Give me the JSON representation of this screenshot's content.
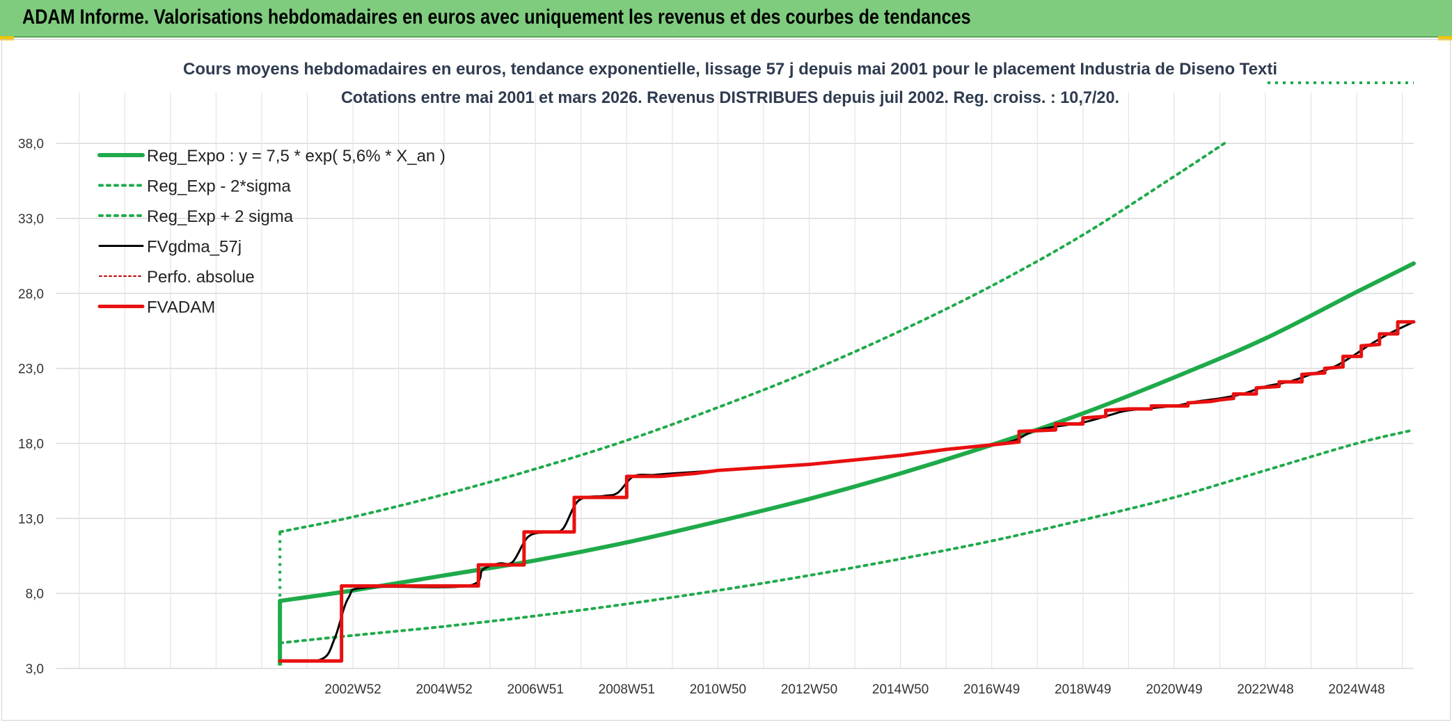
{
  "header": {
    "title": "ADAM Informe. Valorisations hebdomadaires en euros avec uniquement les revenus et des courbes de tendances"
  },
  "chart_data": {
    "type": "line",
    "title_line1": "Cours moyens hebdomadaires en euros, tendance exponentielle, lissage 57 j depuis mai 2001 pour le placement Industria de Diseno Texti",
    "title_line2": "Cotations entre mai 2001 et mars 2026. Revenus DISTRIBUES depuis juil 2002. Reg. croiss. : 10,7/20.",
    "xlabel": "",
    "ylabel": "",
    "ylim": [
      3,
      40
    ],
    "y_ticks": [
      "3,0",
      "8,0",
      "13,0",
      "18,0",
      "23,0",
      "28,0",
      "33,0",
      "38,0"
    ],
    "x_tick_labels": [
      "2002W52",
      "2004W52",
      "2006W51",
      "2008W51",
      "2010W50",
      "2012W50",
      "2014W50",
      "2016W49",
      "2018W49",
      "2020W49",
      "2022W48",
      "2024W48"
    ],
    "x_ticks_year": [
      2003,
      2005,
      2007,
      2009,
      2011,
      2013,
      2015,
      2017,
      2019,
      2021,
      2023,
      2025
    ],
    "x_range_year": [
      1996.5,
      2026.25
    ],
    "data_start_year": 2001.4,
    "grid": true,
    "legend_position": "top-left",
    "series": [
      {
        "name": "Reg_Expo : y = 7,5 * exp( 5,6% *  X_an )",
        "color": "#1faa4a",
        "style": "solid-thick",
        "points": [
          [
            2001.4,
            7.5
          ],
          [
            2003,
            8.2
          ],
          [
            2005,
            9.2
          ],
          [
            2007,
            10.2
          ],
          [
            2009,
            11.4
          ],
          [
            2011,
            12.8
          ],
          [
            2013,
            14.3
          ],
          [
            2015,
            16.0
          ],
          [
            2017,
            17.9
          ],
          [
            2019,
            20.0
          ],
          [
            2021,
            22.4
          ],
          [
            2023,
            25.0
          ],
          [
            2025,
            28.1
          ],
          [
            2026.25,
            30.0
          ]
        ]
      },
      {
        "name": "Reg_Exp - 2*sigma",
        "color": "#1faa4a",
        "style": "dotted",
        "points": [
          [
            2001.4,
            4.7
          ],
          [
            2003,
            5.2
          ],
          [
            2005,
            5.8
          ],
          [
            2007,
            6.5
          ],
          [
            2009,
            7.3
          ],
          [
            2011,
            8.2
          ],
          [
            2013,
            9.2
          ],
          [
            2015,
            10.3
          ],
          [
            2017,
            11.5
          ],
          [
            2019,
            12.9
          ],
          [
            2021,
            14.4
          ],
          [
            2023,
            16.2
          ],
          [
            2025,
            18.0
          ],
          [
            2026.25,
            18.9
          ]
        ]
      },
      {
        "name": "Reg_Exp + 2 sigma",
        "color": "#1faa4a",
        "style": "dotted",
        "points": [
          [
            2001.4,
            12.1
          ],
          [
            2003,
            13.1
          ],
          [
            2005,
            14.6
          ],
          [
            2007,
            16.3
          ],
          [
            2009,
            18.2
          ],
          [
            2011,
            20.4
          ],
          [
            2013,
            22.8
          ],
          [
            2015,
            25.5
          ],
          [
            2017,
            28.5
          ],
          [
            2019,
            31.9
          ],
          [
            2021,
            35.8
          ],
          [
            2022.1,
            38.0
          ]
        ]
      },
      {
        "name": "FVgdma_57j",
        "color": "#000000",
        "style": "solid",
        "points": [
          [
            2001.4,
            3.5
          ],
          [
            2002.3,
            3.6
          ],
          [
            2002.6,
            5.0
          ],
          [
            2002.9,
            7.7
          ],
          [
            2003.3,
            8.4
          ],
          [
            2005.5,
            8.5
          ],
          [
            2005.85,
            9.6
          ],
          [
            2006.2,
            10.0
          ],
          [
            2006.5,
            10.1
          ],
          [
            2006.85,
            11.8
          ],
          [
            2007.3,
            12.1
          ],
          [
            2007.6,
            12.3
          ],
          [
            2007.95,
            14.2
          ],
          [
            2008.5,
            14.5
          ],
          [
            2008.8,
            14.7
          ],
          [
            2009.15,
            15.8
          ],
          [
            2009.6,
            15.9
          ],
          [
            2010,
            16.0
          ],
          [
            2011,
            16.2
          ],
          [
            2012,
            16.4
          ],
          [
            2013,
            16.6
          ],
          [
            2014,
            16.9
          ],
          [
            2015,
            17.2
          ],
          [
            2016,
            17.6
          ],
          [
            2017,
            17.9
          ],
          [
            2017.5,
            18.2
          ],
          [
            2018,
            18.9
          ],
          [
            2019,
            19.4
          ],
          [
            2019.6,
            19.9
          ],
          [
            2020,
            20.2
          ],
          [
            2021,
            20.5
          ],
          [
            2021.5,
            20.8
          ],
          [
            2022,
            21.0
          ],
          [
            2022.5,
            21.3
          ],
          [
            2023,
            21.8
          ],
          [
            2023.5,
            22.1
          ],
          [
            2024,
            22.6
          ],
          [
            2024.5,
            23.1
          ],
          [
            2024.9,
            23.8
          ],
          [
            2025.3,
            24.6
          ],
          [
            2025.7,
            25.3
          ],
          [
            2026.25,
            26.1
          ]
        ]
      },
      {
        "name": "Perfo. absolue",
        "color": "#c00000",
        "style": "dotted-thin",
        "points": []
      },
      {
        "name": "FVADAM",
        "color": "#e81010",
        "style": "step-thick",
        "points": [
          [
            2001.4,
            3.5
          ],
          [
            2002.75,
            3.5
          ],
          [
            2002.75,
            8.5
          ],
          [
            2005.75,
            8.5
          ],
          [
            2005.75,
            9.9
          ],
          [
            2006.75,
            9.9
          ],
          [
            2006.75,
            12.1
          ],
          [
            2007.85,
            12.1
          ],
          [
            2007.85,
            14.4
          ],
          [
            2009.0,
            14.4
          ],
          [
            2009.0,
            15.8
          ],
          [
            2009.75,
            15.8
          ],
          [
            2010.5,
            16.0
          ],
          [
            2011,
            16.2
          ],
          [
            2012,
            16.4
          ],
          [
            2013,
            16.6
          ],
          [
            2014,
            16.9
          ],
          [
            2015,
            17.2
          ],
          [
            2016,
            17.6
          ],
          [
            2017,
            17.9
          ],
          [
            2017.6,
            18.1
          ],
          [
            2017.6,
            18.8
          ],
          [
            2018.4,
            18.9
          ],
          [
            2018.4,
            19.3
          ],
          [
            2019.0,
            19.3
          ],
          [
            2019.0,
            19.7
          ],
          [
            2019.5,
            19.8
          ],
          [
            2019.5,
            20.2
          ],
          [
            2020.0,
            20.3
          ],
          [
            2020.5,
            20.3
          ],
          [
            2020.5,
            20.5
          ],
          [
            2021.3,
            20.5
          ],
          [
            2021.3,
            20.7
          ],
          [
            2021.8,
            20.8
          ],
          [
            2022.0,
            20.9
          ],
          [
            2022.3,
            21.0
          ],
          [
            2022.3,
            21.3
          ],
          [
            2022.8,
            21.3
          ],
          [
            2022.8,
            21.7
          ],
          [
            2023.3,
            21.8
          ],
          [
            2023.3,
            22.1
          ],
          [
            2023.8,
            22.1
          ],
          [
            2023.8,
            22.6
          ],
          [
            2024.3,
            22.7
          ],
          [
            2024.3,
            23.0
          ],
          [
            2024.7,
            23.1
          ],
          [
            2024.7,
            23.8
          ],
          [
            2025.1,
            23.8
          ],
          [
            2025.1,
            24.5
          ],
          [
            2025.5,
            24.6
          ],
          [
            2025.5,
            25.3
          ],
          [
            2025.9,
            25.3
          ],
          [
            2025.9,
            26.1
          ],
          [
            2026.25,
            26.1
          ]
        ]
      }
    ]
  }
}
